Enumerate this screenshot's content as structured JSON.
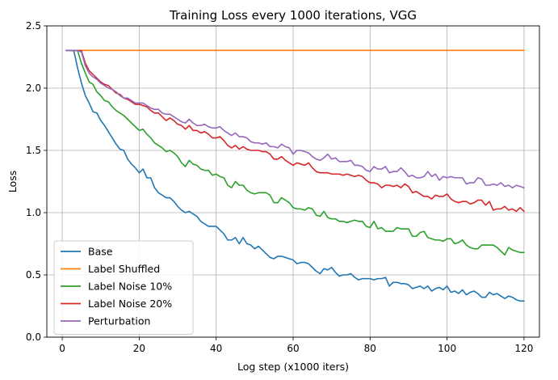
{
  "chart_data": {
    "type": "line",
    "title": "Training Loss every 1000 iterations, VGG",
    "xlabel": "Log step (x1000 iters)",
    "ylabel": "Loss",
    "xlim": [
      -4,
      124
    ],
    "ylim": [
      0,
      2.5
    ],
    "xticks": [
      0,
      20,
      40,
      60,
      80,
      100,
      120
    ],
    "yticks": [
      0.0,
      0.5,
      1.0,
      1.5,
      2.0,
      2.5
    ],
    "ytick_labels": [
      "0.0",
      "0.5",
      "1.0",
      "1.5",
      "2.0",
      "2.5"
    ],
    "grid": true,
    "legend_position": "lower-left",
    "x": [
      1,
      2,
      3,
      4,
      5,
      6,
      7,
      8,
      9,
      10,
      11,
      12,
      13,
      14,
      15,
      16,
      17,
      18,
      19,
      20,
      21,
      22,
      23,
      24,
      25,
      26,
      27,
      28,
      29,
      30,
      31,
      32,
      33,
      34,
      35,
      36,
      37,
      38,
      39,
      40,
      41,
      42,
      43,
      44,
      45,
      46,
      47,
      48,
      49,
      50,
      51,
      52,
      53,
      54,
      55,
      56,
      57,
      58,
      59,
      60,
      61,
      62,
      63,
      64,
      65,
      66,
      67,
      68,
      69,
      70,
      71,
      72,
      73,
      74,
      75,
      76,
      77,
      78,
      79,
      80,
      81,
      82,
      83,
      84,
      85,
      86,
      87,
      88,
      89,
      90,
      91,
      92,
      93,
      94,
      95,
      96,
      97,
      98,
      99,
      100,
      101,
      102,
      103,
      104,
      105,
      106,
      107,
      108,
      109,
      110,
      111,
      112,
      113,
      114,
      115,
      116,
      117,
      118,
      119,
      120
    ],
    "series": [
      {
        "name": "Base",
        "color": "#1f77b4",
        "values": [
          2.303,
          2.303,
          2.3,
          2.16,
          2.04,
          1.94,
          1.88,
          1.81,
          1.8,
          1.74,
          1.7,
          1.65,
          1.6,
          1.55,
          1.51,
          1.5,
          1.43,
          1.39,
          1.36,
          1.32,
          1.35,
          1.28,
          1.28,
          1.2,
          1.16,
          1.14,
          1.12,
          1.12,
          1.09,
          1.05,
          1.02,
          1.0,
          1.01,
          0.99,
          0.97,
          0.93,
          0.91,
          0.89,
          0.89,
          0.89,
          0.86,
          0.83,
          0.78,
          0.78,
          0.8,
          0.75,
          0.8,
          0.75,
          0.74,
          0.71,
          0.73,
          0.7,
          0.67,
          0.64,
          0.63,
          0.65,
          0.65,
          0.64,
          0.63,
          0.62,
          0.59,
          0.6,
          0.6,
          0.59,
          0.56,
          0.53,
          0.51,
          0.55,
          0.54,
          0.56,
          0.52,
          0.49,
          0.5,
          0.5,
          0.51,
          0.48,
          0.46,
          0.47,
          0.47,
          0.47,
          0.46,
          0.47,
          0.47,
          0.48,
          0.41,
          0.44,
          0.44,
          0.43,
          0.43,
          0.42,
          0.39,
          0.4,
          0.41,
          0.39,
          0.41,
          0.37,
          0.39,
          0.4,
          0.38,
          0.41,
          0.36,
          0.37,
          0.35,
          0.38,
          0.34,
          0.36,
          0.37,
          0.35,
          0.32,
          0.32,
          0.36,
          0.34,
          0.35,
          0.33,
          0.31,
          0.33,
          0.32,
          0.3,
          0.29,
          0.29
        ]
      },
      {
        "name": "Label Shuffled",
        "color": "#ff7f0e",
        "values": [
          2.303,
          2.303,
          2.303,
          2.303,
          2.303,
          2.303,
          2.303,
          2.303,
          2.303,
          2.303,
          2.303,
          2.303,
          2.303,
          2.303,
          2.303,
          2.303,
          2.303,
          2.303,
          2.303,
          2.303,
          2.303,
          2.303,
          2.303,
          2.303,
          2.303,
          2.303,
          2.303,
          2.303,
          2.303,
          2.303,
          2.303,
          2.303,
          2.303,
          2.303,
          2.303,
          2.303,
          2.303,
          2.303,
          2.303,
          2.303,
          2.303,
          2.303,
          2.303,
          2.303,
          2.303,
          2.303,
          2.303,
          2.303,
          2.303,
          2.303,
          2.303,
          2.303,
          2.303,
          2.303,
          2.303,
          2.303,
          2.303,
          2.303,
          2.303,
          2.303,
          2.303,
          2.303,
          2.303,
          2.303,
          2.303,
          2.303,
          2.303,
          2.303,
          2.303,
          2.303,
          2.303,
          2.303,
          2.303,
          2.303,
          2.303,
          2.303,
          2.303,
          2.303,
          2.303,
          2.303,
          2.303,
          2.303,
          2.303,
          2.303,
          2.303,
          2.303,
          2.303,
          2.303,
          2.303,
          2.303,
          2.303,
          2.303,
          2.303,
          2.303,
          2.303,
          2.303,
          2.303,
          2.303,
          2.303,
          2.303,
          2.303,
          2.303,
          2.303,
          2.303,
          2.303,
          2.303,
          2.303,
          2.303,
          2.303,
          2.303,
          2.303,
          2.303,
          2.303,
          2.303,
          2.303,
          2.303,
          2.303,
          2.303,
          2.303,
          2.303
        ]
      },
      {
        "name": "Label Noise 10%",
        "color": "#2ca02c",
        "values": [
          2.303,
          2.303,
          2.303,
          2.3,
          2.2,
          2.12,
          2.05,
          2.03,
          1.97,
          1.94,
          1.9,
          1.89,
          1.85,
          1.82,
          1.8,
          1.78,
          1.75,
          1.72,
          1.69,
          1.66,
          1.67,
          1.63,
          1.6,
          1.56,
          1.54,
          1.52,
          1.49,
          1.5,
          1.48,
          1.45,
          1.4,
          1.37,
          1.42,
          1.39,
          1.38,
          1.35,
          1.34,
          1.34,
          1.3,
          1.31,
          1.29,
          1.28,
          1.22,
          1.2,
          1.25,
          1.22,
          1.22,
          1.18,
          1.16,
          1.15,
          1.16,
          1.16,
          1.16,
          1.14,
          1.08,
          1.08,
          1.12,
          1.1,
          1.08,
          1.04,
          1.03,
          1.03,
          1.02,
          1.04,
          1.03,
          0.98,
          0.97,
          1.01,
          0.96,
          0.95,
          0.95,
          0.93,
          0.93,
          0.92,
          0.93,
          0.94,
          0.93,
          0.93,
          0.89,
          0.88,
          0.93,
          0.87,
          0.88,
          0.85,
          0.85,
          0.85,
          0.88,
          0.87,
          0.87,
          0.87,
          0.81,
          0.81,
          0.84,
          0.85,
          0.8,
          0.79,
          0.78,
          0.78,
          0.77,
          0.79,
          0.79,
          0.75,
          0.76,
          0.78,
          0.74,
          0.72,
          0.71,
          0.71,
          0.74,
          0.74,
          0.74,
          0.74,
          0.72,
          0.69,
          0.66,
          0.72,
          0.7,
          0.69,
          0.68,
          0.68
        ]
      },
      {
        "name": "Label Noise 20%",
        "color": "#d62728",
        "values": [
          2.303,
          2.303,
          2.303,
          2.303,
          2.3,
          2.2,
          2.14,
          2.11,
          2.08,
          2.05,
          2.03,
          2.02,
          1.99,
          1.96,
          1.95,
          1.92,
          1.91,
          1.89,
          1.87,
          1.87,
          1.86,
          1.85,
          1.82,
          1.8,
          1.8,
          1.77,
          1.74,
          1.76,
          1.74,
          1.71,
          1.7,
          1.67,
          1.7,
          1.66,
          1.66,
          1.64,
          1.65,
          1.63,
          1.6,
          1.6,
          1.61,
          1.58,
          1.54,
          1.52,
          1.54,
          1.51,
          1.53,
          1.51,
          1.5,
          1.5,
          1.5,
          1.49,
          1.49,
          1.47,
          1.43,
          1.43,
          1.45,
          1.42,
          1.4,
          1.38,
          1.4,
          1.39,
          1.38,
          1.4,
          1.36,
          1.33,
          1.32,
          1.32,
          1.32,
          1.31,
          1.31,
          1.31,
          1.3,
          1.31,
          1.3,
          1.29,
          1.3,
          1.29,
          1.26,
          1.24,
          1.24,
          1.23,
          1.2,
          1.22,
          1.22,
          1.21,
          1.22,
          1.2,
          1.23,
          1.21,
          1.16,
          1.17,
          1.15,
          1.13,
          1.13,
          1.11,
          1.14,
          1.13,
          1.13,
          1.15,
          1.11,
          1.09,
          1.08,
          1.09,
          1.09,
          1.07,
          1.08,
          1.1,
          1.1,
          1.06,
          1.09,
          1.02,
          1.03,
          1.03,
          1.05,
          1.02,
          1.03,
          1.01,
          1.04,
          1.01
        ]
      },
      {
        "name": "Perturbation",
        "color": "#9467bd",
        "values": [
          2.303,
          2.303,
          2.303,
          2.303,
          2.29,
          2.18,
          2.12,
          2.09,
          2.07,
          2.04,
          2.02,
          2.0,
          1.99,
          1.97,
          1.94,
          1.92,
          1.92,
          1.9,
          1.88,
          1.88,
          1.88,
          1.86,
          1.84,
          1.83,
          1.83,
          1.8,
          1.79,
          1.79,
          1.77,
          1.75,
          1.73,
          1.72,
          1.75,
          1.72,
          1.7,
          1.7,
          1.71,
          1.69,
          1.68,
          1.68,
          1.69,
          1.66,
          1.64,
          1.62,
          1.64,
          1.61,
          1.61,
          1.6,
          1.57,
          1.56,
          1.56,
          1.55,
          1.56,
          1.53,
          1.53,
          1.52,
          1.55,
          1.53,
          1.52,
          1.47,
          1.5,
          1.5,
          1.49,
          1.48,
          1.45,
          1.43,
          1.42,
          1.44,
          1.47,
          1.43,
          1.44,
          1.41,
          1.41,
          1.41,
          1.42,
          1.38,
          1.38,
          1.37,
          1.34,
          1.33,
          1.37,
          1.35,
          1.35,
          1.37,
          1.32,
          1.33,
          1.33,
          1.36,
          1.33,
          1.29,
          1.3,
          1.28,
          1.28,
          1.29,
          1.33,
          1.29,
          1.31,
          1.26,
          1.29,
          1.28,
          1.29,
          1.28,
          1.28,
          1.28,
          1.23,
          1.24,
          1.24,
          1.28,
          1.27,
          1.22,
          1.22,
          1.23,
          1.22,
          1.24,
          1.21,
          1.22,
          1.2,
          1.22,
          1.21,
          1.2
        ]
      }
    ]
  }
}
